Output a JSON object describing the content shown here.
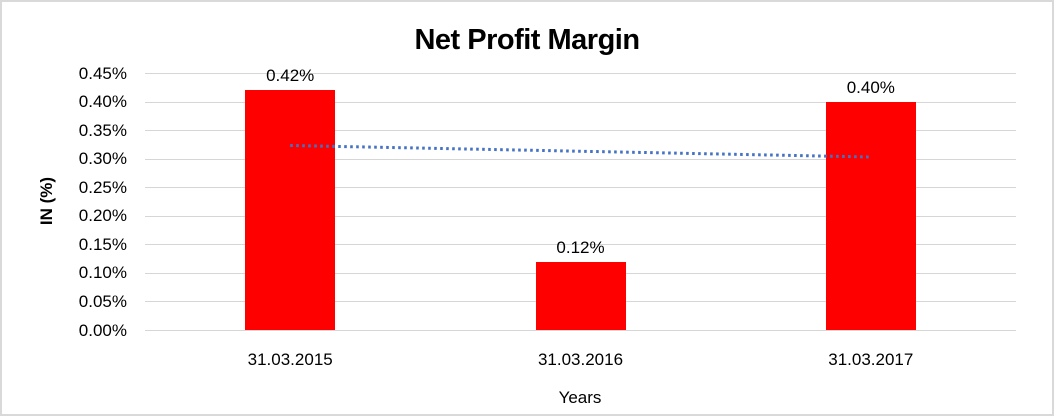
{
  "chart_data": {
    "type": "bar",
    "title": "Net Profit Margin",
    "xlabel": "Years",
    "ylabel": "IN (%)",
    "categories": [
      "31.03.2015",
      "31.03.2016",
      "31.03.2017"
    ],
    "values": [
      0.42,
      0.12,
      0.4
    ],
    "data_labels": [
      "0.42%",
      "0.12%",
      "0.40%"
    ],
    "ylim": [
      0,
      0.45
    ],
    "ytick_step": 0.05,
    "yticks": [
      "0.45%",
      "0.40%",
      "0.35%",
      "0.30%",
      "0.25%",
      "0.20%",
      "0.15%",
      "0.10%",
      "0.05%",
      "0.00%"
    ],
    "grid": true,
    "legend": false,
    "bar_color": "#ff0000",
    "gridline_color": "#d6d6d6",
    "trendline": {
      "type": "linear",
      "style": "dotted",
      "color": "#4472c4",
      "start_value": 0.323,
      "end_value": 0.303
    }
  }
}
